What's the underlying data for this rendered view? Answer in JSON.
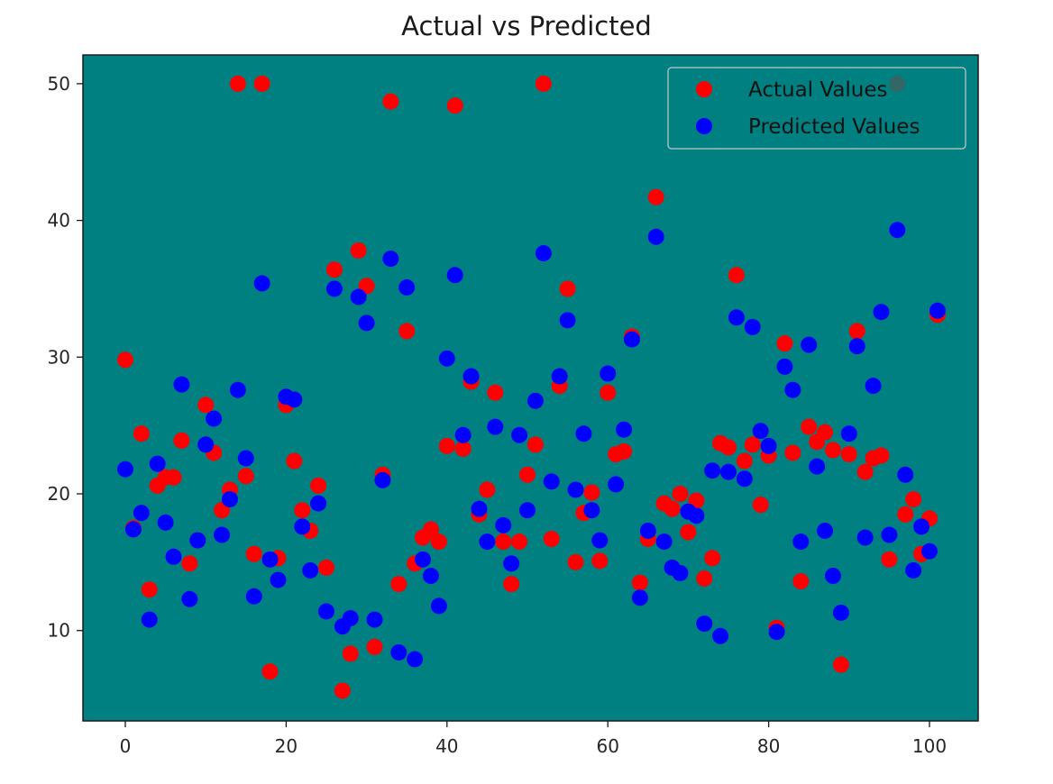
{
  "chart_data": {
    "type": "scatter",
    "title": "Actual vs Predicted",
    "xlabel": "",
    "ylabel": "",
    "xlim": [
      -5,
      106
    ],
    "ylim": [
      3.5,
      52.2
    ],
    "xticks": [
      0,
      20,
      40,
      60,
      80,
      100
    ],
    "yticks": [
      10,
      20,
      30,
      40,
      50
    ],
    "grid": false,
    "background_color": "#008080",
    "legend_position": "upper right",
    "series": [
      {
        "name": "Actual Values",
        "color": "#ff0000",
        "x": [
          0,
          1,
          2,
          3,
          4,
          5,
          6,
          7,
          8,
          9,
          10,
          11,
          12,
          13,
          14,
          15,
          16,
          17,
          18,
          19,
          20,
          21,
          22,
          23,
          24,
          25,
          26,
          27,
          28,
          29,
          30,
          31,
          32,
          33,
          34,
          35,
          36,
          37,
          38,
          39,
          40,
          41,
          42,
          43,
          44,
          45,
          46,
          47,
          48,
          49,
          50,
          51,
          52,
          53,
          54,
          55,
          56,
          57,
          58,
          59,
          60,
          61,
          62,
          63,
          64,
          65,
          66,
          67,
          68,
          69,
          70,
          71,
          72,
          73,
          74,
          75,
          76,
          77,
          78,
          79,
          80,
          81,
          82,
          83,
          84,
          85,
          86,
          87,
          88,
          89,
          90,
          91,
          92,
          93,
          94,
          95,
          96,
          97,
          98,
          99,
          100,
          101
        ],
        "values": [
          29.8,
          17.5,
          24.4,
          13.0,
          20.6,
          21.2,
          21.2,
          23.9,
          14.9,
          16.6,
          26.5,
          23.0,
          18.8,
          20.3,
          50.0,
          21.3,
          15.6,
          50.0,
          7.0,
          15.3,
          26.5,
          22.4,
          18.8,
          17.3,
          20.6,
          14.6,
          36.4,
          5.6,
          8.3,
          37.8,
          35.2,
          8.8,
          21.4,
          48.7,
          13.4,
          31.9,
          14.9,
          16.8,
          17.4,
          16.5,
          23.5,
          48.4,
          23.3,
          28.2,
          18.5,
          20.3,
          27.4,
          16.5,
          13.4,
          16.5,
          21.4,
          23.6,
          50.0,
          16.7,
          27.9,
          35.0,
          15.0,
          18.6,
          20.1,
          15.1,
          27.4,
          22.9,
          23.1,
          31.5,
          13.5,
          16.7,
          41.7,
          19.3,
          18.9,
          20.0,
          17.2,
          19.5,
          13.8,
          15.3,
          23.7,
          23.4,
          36.0,
          22.4,
          23.6,
          19.2,
          22.8,
          10.2,
          31.0,
          23.0,
          13.6,
          24.9,
          23.8,
          24.5,
          23.2,
          7.5,
          22.9,
          31.9,
          21.6,
          22.6,
          22.8,
          15.2,
          50.0,
          18.5,
          19.6,
          15.6,
          18.2,
          33.1
        ]
      },
      {
        "name": "Predicted Values",
        "color": "#0000ff",
        "x": [
          0,
          1,
          2,
          3,
          4,
          5,
          6,
          7,
          8,
          9,
          10,
          11,
          12,
          13,
          14,
          15,
          16,
          17,
          18,
          19,
          20,
          21,
          22,
          23,
          24,
          25,
          26,
          27,
          28,
          29,
          30,
          31,
          32,
          33,
          34,
          35,
          36,
          37,
          38,
          39,
          40,
          41,
          42,
          43,
          44,
          45,
          46,
          47,
          48,
          49,
          50,
          51,
          52,
          53,
          54,
          55,
          56,
          57,
          58,
          59,
          60,
          61,
          62,
          63,
          64,
          65,
          66,
          67,
          68,
          69,
          70,
          71,
          72,
          73,
          74,
          75,
          76,
          77,
          78,
          79,
          80,
          81,
          82,
          83,
          84,
          85,
          86,
          87,
          88,
          89,
          90,
          91,
          92,
          93,
          94,
          95,
          96,
          97,
          98,
          99,
          100,
          101
        ],
        "values": [
          21.8,
          17.4,
          18.6,
          10.8,
          22.2,
          17.9,
          15.4,
          28.0,
          12.3,
          16.6,
          23.6,
          25.5,
          17.0,
          19.6,
          27.6,
          22.6,
          12.5,
          35.4,
          15.2,
          13.7,
          27.1,
          26.9,
          17.6,
          14.4,
          19.3,
          11.4,
          35.0,
          10.3,
          10.9,
          34.4,
          32.5,
          10.8,
          21.0,
          37.2,
          8.4,
          35.1,
          7.9,
          15.2,
          14.0,
          11.8,
          29.9,
          36.0,
          24.3,
          28.6,
          18.9,
          16.5,
          24.9,
          17.7,
          14.9,
          24.3,
          18.8,
          26.8,
          37.6,
          20.9,
          28.6,
          32.7,
          20.3,
          24.4,
          18.8,
          16.6,
          28.8,
          20.7,
          24.7,
          31.3,
          12.4,
          17.3,
          38.8,
          16.5,
          14.6,
          14.2,
          18.7,
          18.4,
          10.5,
          21.7,
          9.6,
          21.6,
          32.9,
          21.1,
          32.2,
          24.6,
          23.5,
          9.9,
          29.3,
          27.6,
          16.5,
          30.9,
          22.0,
          17.3,
          14.0,
          11.3,
          24.4,
          30.8,
          16.8,
          27.9,
          33.3,
          17.0,
          39.3,
          21.4,
          14.4,
          17.6,
          15.8,
          33.4
        ]
      }
    ]
  },
  "legend": {
    "items": [
      {
        "label": "Actual Values",
        "color": "#ff0000"
      },
      {
        "label": "Predicted Values",
        "color": "#0000ff"
      }
    ]
  }
}
